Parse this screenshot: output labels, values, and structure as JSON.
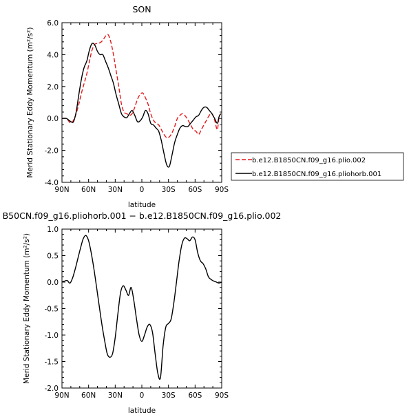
{
  "chart_data": [
    {
      "type": "line",
      "title": "SON",
      "xlabel": "latitude",
      "ylabel": "Merid Stationary Eddy Momentum (m²/s²)",
      "xlim": [
        90,
        -90
      ],
      "ylim": [
        -4,
        6
      ],
      "x_tick_labels": [
        "90N",
        "60N",
        "30N",
        "0",
        "30S",
        "60S",
        "90S"
      ],
      "y_tick_labels": [
        "-4.0",
        "-2.0",
        "0.0",
        "2.0",
        "4.0",
        "6.0"
      ],
      "legend_position": "right",
      "series": [
        {
          "name": "b.e12.B1850CN.f09_g16.plio.002",
          "color": "#e41a1c",
          "style": "dashed",
          "x": [
            90,
            85,
            80,
            77,
            74,
            71,
            68,
            65,
            62,
            59,
            56,
            53,
            50,
            47,
            44,
            41,
            38,
            35,
            32,
            29,
            26,
            23,
            20,
            17,
            14,
            11,
            8,
            5,
            2,
            -1,
            -4,
            -7,
            -10,
            -13,
            -16,
            -19,
            -22,
            -25,
            -28,
            -31,
            -34,
            -37,
            -40,
            -43,
            -46,
            -49,
            -52,
            -55,
            -58,
            -61,
            -64,
            -67,
            -70,
            -73,
            -76,
            -79,
            -82,
            -85,
            -87,
            -89
          ],
          "y": [
            0,
            0,
            -0.3,
            -0.1,
            0.3,
            0.9,
            1.6,
            2.2,
            2.8,
            3.6,
            4.3,
            4.65,
            4.7,
            4.75,
            4.9,
            5.15,
            5.25,
            4.8,
            4.0,
            3.0,
            2.0,
            0.9,
            0.4,
            0.3,
            0.2,
            0.3,
            0.7,
            1.2,
            1.5,
            1.6,
            1.3,
            0.9,
            0.3,
            -0.1,
            -0.3,
            -0.4,
            -0.7,
            -1.0,
            -1.2,
            -1.15,
            -0.9,
            -0.5,
            0.0,
            0.2,
            0.3,
            0.15,
            -0.1,
            -0.4,
            -0.7,
            -0.8,
            -1.0,
            -0.7,
            -0.4,
            -0.1,
            0.2,
            0.3,
            -0.1,
            -0.7,
            0.1,
            0.3
          ]
        },
        {
          "name": "b.e12.B1850CN.f09_g16.pliohorb.001",
          "color": "#000000",
          "style": "solid",
          "x": [
            90,
            85,
            80,
            77,
            74,
            71,
            68,
            65,
            62,
            59,
            56,
            53,
            50,
            47,
            44,
            41,
            38,
            35,
            32,
            29,
            26,
            23,
            20,
            17,
            14,
            11,
            8,
            5,
            2,
            -1,
            -4,
            -7,
            -10,
            -13,
            -16,
            -19,
            -22,
            -25,
            -28,
            -31,
            -34,
            -37,
            -40,
            -43,
            -46,
            -49,
            -52,
            -55,
            -58,
            -61,
            -64,
            -67,
            -70,
            -73,
            -76,
            -79,
            -82,
            -85,
            -87,
            -89
          ],
          "y": [
            0,
            0,
            -0.2,
            -0.2,
            0.4,
            1.5,
            2.5,
            3.2,
            3.6,
            4.3,
            4.7,
            4.6,
            4.2,
            4.0,
            4.0,
            3.6,
            3.2,
            2.7,
            2.2,
            1.5,
            0.9,
            0.3,
            0.1,
            0.05,
            0.3,
            0.5,
            0.2,
            -0.2,
            -0.15,
            0.1,
            0.5,
            0.3,
            -0.3,
            -0.4,
            -0.6,
            -0.8,
            -1.4,
            -2.2,
            -2.9,
            -3.0,
            -2.3,
            -1.5,
            -1.0,
            -0.6,
            -0.45,
            -0.5,
            -0.5,
            -0.3,
            -0.1,
            0.1,
            0.2,
            0.5,
            0.7,
            0.7,
            0.5,
            0.3,
            0.0,
            -0.3,
            0.1,
            0.3
          ]
        }
      ]
    },
    {
      "type": "line",
      "title": "B50CN.f09_g16.pliohorb.001 − b.e12.B1850CN.f09_g16.plio.002",
      "xlabel": "latitude",
      "ylabel": "Merid Stationary Eddy Momentum (m²/s²)",
      "xlim": [
        90,
        -90
      ],
      "ylim": [
        -2,
        1
      ],
      "x_tick_labels": [
        "90N",
        "60N",
        "30N",
        "0",
        "30S",
        "60S",
        "90S"
      ],
      "y_tick_labels": [
        "-2.0",
        "-1.5",
        "-1.0",
        "-0.5",
        "0.0",
        "0.5",
        "1.0"
      ],
      "series": [
        {
          "color": "#000000",
          "style": "solid",
          "x": [
            90,
            87,
            84,
            81,
            78,
            75,
            72,
            69,
            66,
            63,
            60,
            57,
            54,
            51,
            48,
            45,
            42,
            39,
            36,
            33,
            30,
            27,
            24,
            21,
            18,
            15,
            12,
            9,
            6,
            3,
            0,
            -3,
            -6,
            -9,
            -12,
            -15,
            -18,
            -21,
            -24,
            -27,
            -30,
            -33,
            -36,
            -39,
            -42,
            -45,
            -48,
            -51,
            -54,
            -57,
            -60,
            -63,
            -66,
            -69,
            -72,
            -75,
            -78,
            -81,
            -84,
            -87,
            -90
          ],
          "y": [
            0.0,
            0.02,
            0.03,
            -0.02,
            0.08,
            0.25,
            0.45,
            0.65,
            0.82,
            0.88,
            0.78,
            0.55,
            0.25,
            -0.1,
            -0.45,
            -0.8,
            -1.1,
            -1.35,
            -1.42,
            -1.35,
            -1.05,
            -0.6,
            -0.2,
            -0.07,
            -0.15,
            -0.25,
            -0.1,
            -0.35,
            -0.7,
            -1.0,
            -1.12,
            -1.0,
            -0.85,
            -0.8,
            -0.95,
            -1.35,
            -1.72,
            -1.8,
            -1.2,
            -0.85,
            -0.78,
            -0.7,
            -0.4,
            0.0,
            0.4,
            0.7,
            0.83,
            0.82,
            0.78,
            0.85,
            0.8,
            0.55,
            0.4,
            0.35,
            0.25,
            0.1,
            0.05,
            0.02,
            0.0,
            -0.02,
            0.0
          ]
        }
      ]
    }
  ]
}
